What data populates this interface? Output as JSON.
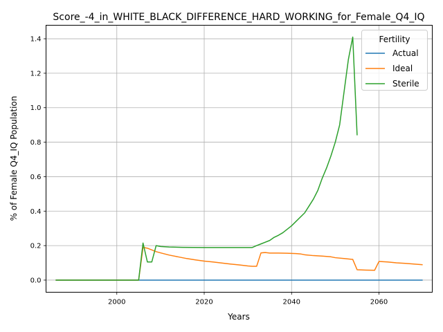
{
  "chart_data": {
    "type": "line",
    "title": "Score_-4_in_WHITE_BLACK_DIFFERENCE_HARD_WORKING_for_Female_Q4_IQ",
    "xlabel": "Years",
    "ylabel": "% of Female Q4_IQ Population",
    "xlim": [
      1983.8,
      2072.2
    ],
    "ylim": [
      -0.0704,
      1.4784
    ],
    "xticks": [
      2000,
      2020,
      2040,
      2060
    ],
    "yticks": [
      0.0,
      0.2,
      0.4,
      0.6,
      0.8,
      1.0,
      1.2,
      1.4
    ],
    "grid": true,
    "legend": {
      "title": "Fertility",
      "position": "top-right"
    },
    "series": [
      {
        "name": "Actual",
        "color": "#1f77b4",
        "points": [
          [
            1986,
            0
          ],
          [
            2070,
            0
          ]
        ]
      },
      {
        "name": "Ideal",
        "color": "#ff7f0e",
        "points": [
          [
            1986,
            0
          ],
          [
            2005,
            0
          ],
          [
            2006,
            0.19
          ],
          [
            2007,
            0.185
          ],
          [
            2008,
            0.175
          ],
          [
            2009,
            0.165
          ],
          [
            2010,
            0.158
          ],
          [
            2012,
            0.145
          ],
          [
            2014,
            0.135
          ],
          [
            2016,
            0.125
          ],
          [
            2018,
            0.117
          ],
          [
            2020,
            0.11
          ],
          [
            2022,
            0.105
          ],
          [
            2024,
            0.099
          ],
          [
            2026,
            0.093
          ],
          [
            2028,
            0.088
          ],
          [
            2030,
            0.082
          ],
          [
            2031,
            0.08
          ],
          [
            2032,
            0.08
          ],
          [
            2033,
            0.158
          ],
          [
            2034,
            0.16
          ],
          [
            2035,
            0.157
          ],
          [
            2037,
            0.157
          ],
          [
            2039,
            0.156
          ],
          [
            2041,
            0.154
          ],
          [
            2042,
            0.152
          ],
          [
            2043,
            0.147
          ],
          [
            2045,
            0.142
          ],
          [
            2047,
            0.139
          ],
          [
            2049,
            0.135
          ],
          [
            2050,
            0.13
          ],
          [
            2052,
            0.125
          ],
          [
            2054,
            0.12
          ],
          [
            2055,
            0.06
          ],
          [
            2057,
            0.058
          ],
          [
            2059,
            0.057
          ],
          [
            2060,
            0.108
          ],
          [
            2062,
            0.105
          ],
          [
            2064,
            0.1
          ],
          [
            2066,
            0.097
          ],
          [
            2068,
            0.093
          ],
          [
            2070,
            0.089
          ]
        ]
      },
      {
        "name": "Sterile",
        "color": "#2ca02c",
        "points": [
          [
            1986,
            0
          ],
          [
            2005,
            0
          ],
          [
            2006,
            0.215
          ],
          [
            2007,
            0.105
          ],
          [
            2008,
            0.105
          ],
          [
            2009,
            0.2
          ],
          [
            2010,
            0.195
          ],
          [
            2012,
            0.192
          ],
          [
            2015,
            0.19
          ],
          [
            2020,
            0.189
          ],
          [
            2025,
            0.189
          ],
          [
            2031,
            0.189
          ],
          [
            2032,
            0.2
          ],
          [
            2033,
            0.21
          ],
          [
            2035,
            0.23
          ],
          [
            2036,
            0.248
          ],
          [
            2037,
            0.26
          ],
          [
            2038,
            0.275
          ],
          [
            2040,
            0.315
          ],
          [
            2041,
            0.34
          ],
          [
            2043,
            0.39
          ],
          [
            2044,
            0.43
          ],
          [
            2045,
            0.47
          ],
          [
            2046,
            0.52
          ],
          [
            2047,
            0.59
          ],
          [
            2048,
            0.65
          ],
          [
            2049,
            0.72
          ],
          [
            2050,
            0.8
          ],
          [
            2051,
            0.9
          ],
          [
            2052,
            1.09
          ],
          [
            2053,
            1.28
          ],
          [
            2054,
            1.41
          ],
          [
            2055,
            0.84
          ]
        ]
      }
    ]
  }
}
